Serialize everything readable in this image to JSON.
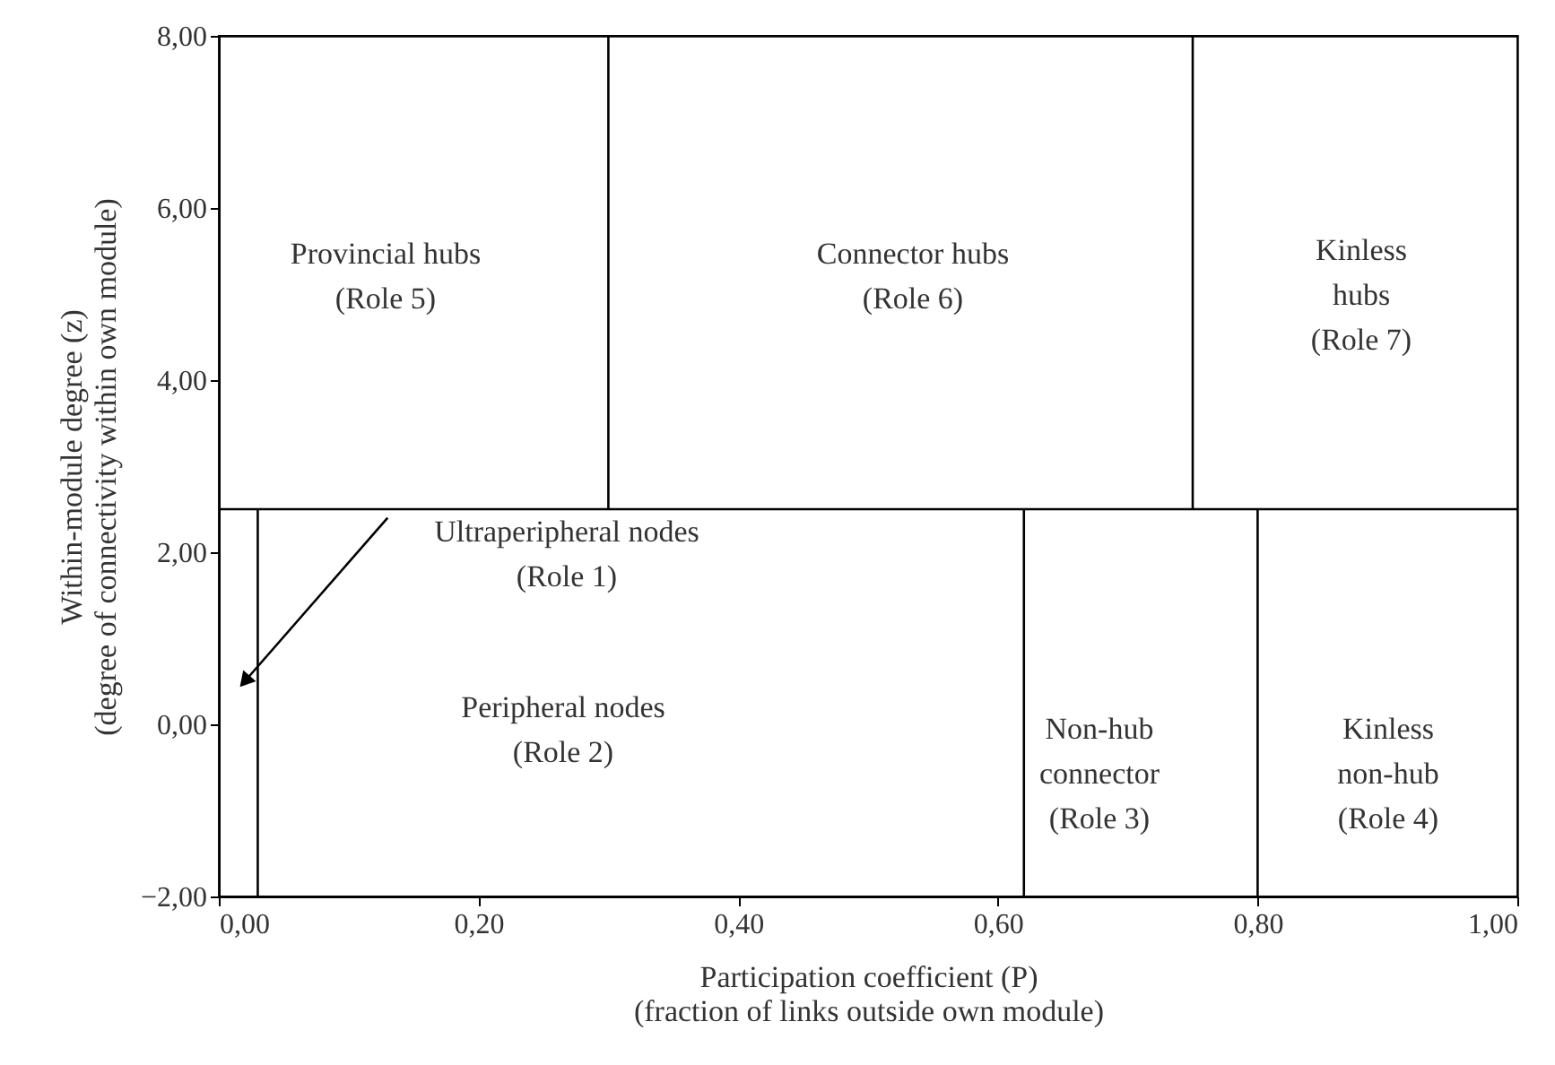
{
  "chart_data": {
    "type": "line",
    "xlabel": "Participation coefficient (P)\n(fraction of links outside own module)",
    "ylabel": "Within-module degree (z)\n(degree of connectivity within own module)",
    "xlim": [
      0,
      1
    ],
    "ylim": [
      -2,
      8
    ],
    "xticks": [
      {
        "value": 0,
        "label": "0,00"
      },
      {
        "value": 0.2,
        "label": "0,20"
      },
      {
        "value": 0.4,
        "label": "0,40"
      },
      {
        "value": 0.6,
        "label": "0,60"
      },
      {
        "value": 0.8,
        "label": "0,80"
      },
      {
        "value": 1,
        "label": "1,00"
      }
    ],
    "yticks": [
      {
        "value": -2,
        "label": "−2,00"
      },
      {
        "value": 0,
        "label": "0,00"
      },
      {
        "value": 2,
        "label": "2,00"
      },
      {
        "value": 4,
        "label": "4,00"
      },
      {
        "value": 6,
        "label": "6,00"
      },
      {
        "value": 8,
        "label": "8,00"
      }
    ],
    "grid": false,
    "marker": "none",
    "line_style": "solid",
    "ref_lines": [
      {
        "axis": "y",
        "value": 2.5,
        "label": null,
        "color": "#000000"
      }
    ],
    "series": [
      {
        "color": "#000000",
        "x": [
          0.03,
          0.03
        ],
        "values": [
          -2,
          2.5
        ]
      },
      {
        "color": "#000000",
        "x": [
          0.62,
          0.62
        ],
        "values": [
          -2,
          2.5
        ]
      },
      {
        "color": "#000000",
        "x": [
          0.8,
          0.8
        ],
        "values": [
          -2,
          2.5
        ]
      },
      {
        "color": "#000000",
        "x": [
          0.3,
          0.3
        ],
        "values": [
          2.5,
          8
        ]
      },
      {
        "color": "#000000",
        "x": [
          0.75,
          0.75
        ],
        "values": [
          2.5,
          8
        ]
      },
      {
        "color": "#000000",
        "x": [
          0.13,
          0.02
        ],
        "values": [
          2.4,
          0.5
        ],
        "marker": "triangle"
      }
    ],
    "annotations": [
      "Provincial hubs\n(Role 5)",
      "Connector hubs\n(Role 6)",
      "Kinless\nhubs\n(Role 7)",
      "Ultraperipheral nodes\n(Role 1)",
      "Peripheral nodes\n(Role 2)",
      "Non-hub\nconnector\n(Role 3)",
      "Kinless\nnon-hub\n(Role 4)"
    ]
  }
}
